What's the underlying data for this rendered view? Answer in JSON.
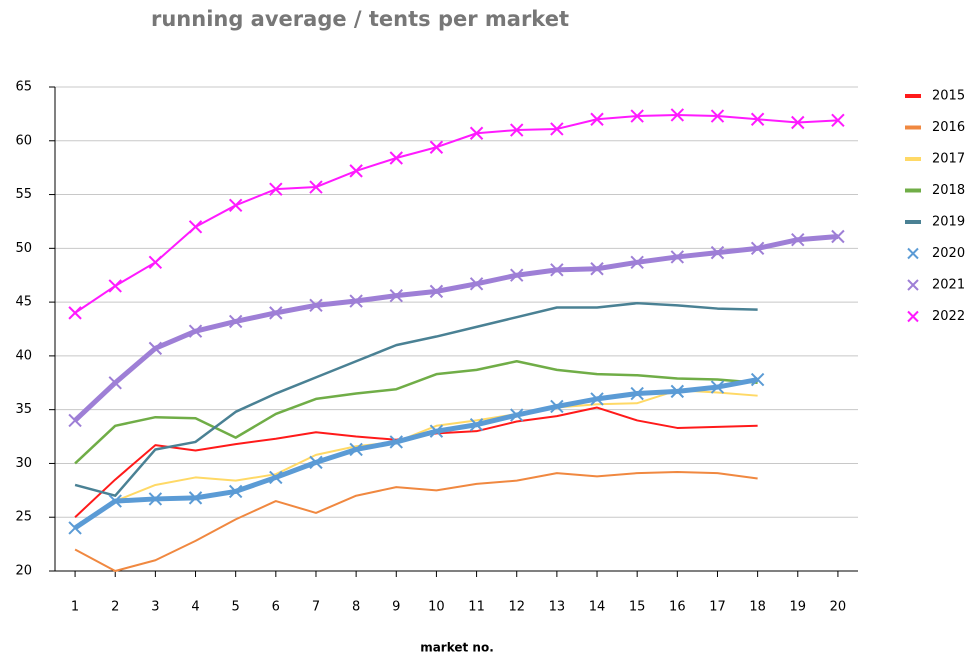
{
  "chart_data": {
    "type": "line",
    "title": "running average / tents per market",
    "x_label": "market no.",
    "x": [
      1,
      2,
      3,
      4,
      5,
      6,
      7,
      8,
      9,
      10,
      11,
      12,
      13,
      14,
      15,
      16,
      17,
      18,
      19,
      20
    ],
    "xlim": [
      0.5,
      20.5
    ],
    "xticks": [
      1,
      2,
      3,
      4,
      5,
      6,
      7,
      8,
      9,
      10,
      11,
      12,
      13,
      14,
      15,
      16,
      17,
      18,
      19,
      20
    ],
    "ylim": [
      20,
      65
    ],
    "yticks": [
      20,
      25,
      30,
      35,
      40,
      45,
      50,
      55,
      60,
      65
    ],
    "grid": true,
    "legend": "right",
    "series": [
      {
        "name": "2015",
        "color": "#ff1a1a",
        "line_width": 2,
        "marker": null,
        "values": [
          25,
          28.5,
          31.7,
          31.2,
          31.8,
          32.3,
          32.9,
          32.5,
          32.2,
          32.8,
          33.0,
          33.9,
          34.4,
          35.2,
          34.0,
          33.3,
          33.4,
          33.5,
          null,
          null
        ]
      },
      {
        "name": "2016",
        "color": "#f08840",
        "line_width": 2,
        "marker": null,
        "values": [
          22,
          20,
          21,
          22.8,
          24.8,
          26.5,
          25.4,
          27,
          27.8,
          27.5,
          28.1,
          28.4,
          29.1,
          28.8,
          29.1,
          29.2,
          29.1,
          28.6,
          null,
          null
        ]
      },
      {
        "name": "2017",
        "color": "#ffd966",
        "line_width": 2,
        "marker": null,
        "values": [
          24,
          26.5,
          28,
          28.7,
          28.4,
          29.0,
          30.8,
          31.6,
          32.0,
          33.5,
          34.0,
          34.6,
          35.2,
          35.5,
          35.6,
          36.8,
          36.6,
          36.3,
          null,
          null
        ]
      },
      {
        "name": "2018",
        "color": "#70ad47",
        "line_width": 2.5,
        "marker": null,
        "values": [
          30,
          33.5,
          34.3,
          34.2,
          32.4,
          34.6,
          36.0,
          36.5,
          36.9,
          38.3,
          38.7,
          39.5,
          38.7,
          38.3,
          38.2,
          37.9,
          37.8,
          37.5,
          null,
          null
        ]
      },
      {
        "name": "2019",
        "color": "#4a8194",
        "line_width": 2.5,
        "marker": null,
        "values": [
          28,
          27,
          31.3,
          32.0,
          34.8,
          36.5,
          38,
          39.5,
          41.0,
          41.8,
          42.7,
          43.6,
          44.5,
          44.5,
          44.9,
          44.7,
          44.4,
          44.3,
          null,
          null
        ]
      },
      {
        "name": "2020",
        "color": "#5b9bd5",
        "line_width": 5,
        "marker": "x",
        "values": [
          24,
          26.5,
          26.7,
          26.8,
          27.4,
          28.7,
          30.1,
          31.3,
          32.0,
          33.0,
          33.6,
          34.5,
          35.3,
          36.0,
          36.5,
          36.7,
          37.1,
          37.8,
          null,
          null
        ]
      },
      {
        "name": "2021",
        "color": "#9e7fd6",
        "line_width": 5,
        "marker": "x",
        "values": [
          34,
          37.5,
          40.7,
          42.3,
          43.2,
          44.0,
          44.7,
          45.1,
          45.6,
          46.0,
          46.7,
          47.5,
          48.0,
          48.1,
          48.7,
          49.2,
          49.6,
          50.0,
          50.8,
          51.1
        ]
      },
      {
        "name": "2022",
        "color": "#ff1aff",
        "line_width": 2,
        "marker": "x",
        "values": [
          44,
          46.5,
          48.7,
          52,
          54,
          55.5,
          55.7,
          57.2,
          58.4,
          59.4,
          60.7,
          61.0,
          61.1,
          62.0,
          62.3,
          62.4,
          62.3,
          62.0,
          61.7,
          61.9
        ]
      }
    ]
  }
}
